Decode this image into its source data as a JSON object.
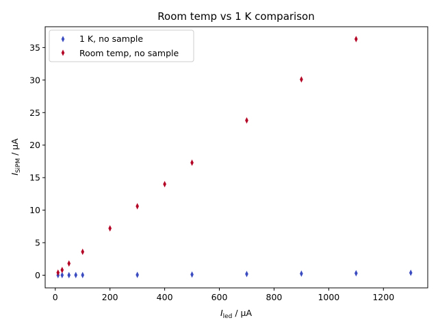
{
  "chart_data": {
    "type": "scatter",
    "title": "Room temp vs 1 K comparison",
    "xlabel": {
      "symbol": "I",
      "sub": "led",
      "unit": " / μA"
    },
    "ylabel": {
      "symbol": "I",
      "sub": "SiPM",
      "unit": " / μA"
    },
    "xlim": [
      -37,
      1362
    ],
    "ylim": [
      -1.95,
      38.2
    ],
    "xticks": [
      0,
      200,
      400,
      600,
      800,
      1000,
      1200
    ],
    "yticks": [
      0,
      5,
      10,
      15,
      20,
      25,
      30,
      35
    ],
    "grid": false,
    "legend_position": "upper-left",
    "marker": "thin-diamond",
    "series": [
      {
        "name": "1 K, no sample",
        "color": "#3b4cc0",
        "x": [
          10,
          25,
          50,
          75,
          100,
          300,
          500,
          700,
          900,
          1100,
          1300
        ],
        "y": [
          0.0,
          0.01,
          0.01,
          0.02,
          0.02,
          0.05,
          0.1,
          0.18,
          0.24,
          0.3,
          0.37
        ]
      },
      {
        "name": "Room temp, no sample",
        "color": "#b40426",
        "x": [
          10,
          25,
          50,
          100,
          200,
          300,
          400,
          500,
          700,
          900,
          1100
        ],
        "y": [
          0.4,
          0.8,
          1.8,
          3.6,
          7.2,
          10.6,
          14.0,
          17.3,
          23.8,
          30.1,
          36.3
        ]
      }
    ]
  }
}
